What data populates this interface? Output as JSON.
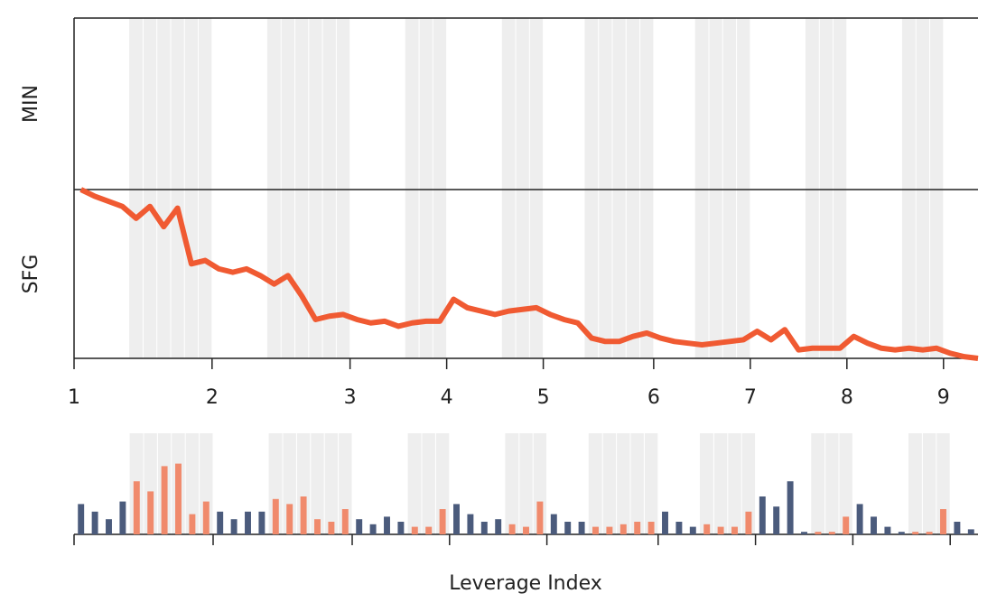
{
  "chart_data": [
    {
      "type": "line",
      "ycategories": [
        "MIN",
        "SFG"
      ],
      "xlim": [
        -0.5,
        65
      ],
      "ylim": [
        0,
        1
      ],
      "xticks": [
        {
          "value": -0.5,
          "label": "1"
        },
        {
          "value": 9.5,
          "label": "2"
        },
        {
          "value": 19.5,
          "label": "3"
        },
        {
          "value": 26.5,
          "label": "4"
        },
        {
          "value": 33.5,
          "label": "5"
        },
        {
          "value": 41.5,
          "label": "6"
        },
        {
          "value": 48.5,
          "label": "7"
        },
        {
          "value": 55.5,
          "label": "8"
        },
        {
          "value": 62.5,
          "label": "9"
        }
      ],
      "bands": [
        [
          3.5,
          9.5
        ],
        [
          13.5,
          19.5
        ],
        [
          23.5,
          26.5
        ],
        [
          30.5,
          33.5
        ],
        [
          36.5,
          41.5
        ],
        [
          44.5,
          48.5
        ],
        [
          52.5,
          55.5
        ],
        [
          59.5,
          62.5
        ]
      ],
      "band_color": "#eeeeee",
      "series": [
        {
          "color": "#f05a32",
          "values": [
            1.0,
            0.96,
            0.93,
            0.9,
            0.83,
            0.9,
            0.78,
            0.89,
            0.56,
            0.58,
            0.53,
            0.51,
            0.53,
            0.49,
            0.44,
            0.49,
            0.37,
            0.23,
            0.25,
            0.26,
            0.23,
            0.21,
            0.22,
            0.19,
            0.21,
            0.22,
            0.22,
            0.35,
            0.3,
            0.28,
            0.26,
            0.28,
            0.29,
            0.3,
            0.26,
            0.23,
            0.21,
            0.12,
            0.1,
            0.1,
            0.13,
            0.15,
            0.12,
            0.1,
            0.09,
            0.08,
            0.09,
            0.1,
            0.11,
            0.16,
            0.11,
            0.17,
            0.05,
            0.06,
            0.06,
            0.06,
            0.13,
            0.09,
            0.06,
            0.05,
            0.06,
            0.05,
            0.06,
            0.03,
            0.01,
            0.0
          ]
        }
      ]
    },
    {
      "type": "bar",
      "x_label": "Leverage Index",
      "xlim": [
        -0.5,
        64.5
      ],
      "ylim": [
        0,
        40
      ],
      "xticks": [
        -0.5,
        9.5,
        19.5,
        26.5,
        33.5,
        41.5,
        48.5,
        55.5,
        62.5
      ],
      "bands": [
        [
          3.5,
          9.5
        ],
        [
          13.5,
          19.5
        ],
        [
          23.5,
          26.5
        ],
        [
          30.5,
          33.5
        ],
        [
          36.5,
          41.5
        ],
        [
          44.5,
          48.5
        ],
        [
          52.5,
          55.5
        ],
        [
          59.5,
          62.5
        ]
      ],
      "band_color": "#eeeeee",
      "inside_color": "#f08a6c",
      "outside_color": "#4b5b7c",
      "values": [
        12,
        9,
        6,
        13,
        21,
        17,
        27,
        28,
        8,
        13,
        9,
        6,
        9,
        9,
        14,
        12,
        15,
        6,
        5,
        10,
        6,
        4,
        7,
        5,
        3,
        3,
        10,
        12,
        8,
        5,
        6,
        4,
        3,
        13,
        8,
        5,
        5,
        3,
        3,
        4,
        5,
        5,
        9,
        5,
        3,
        4,
        3,
        3,
        9,
        15,
        11,
        21,
        1,
        1,
        1,
        7,
        12,
        7,
        3,
        1,
        1,
        1,
        10,
        5,
        2
      ]
    }
  ]
}
